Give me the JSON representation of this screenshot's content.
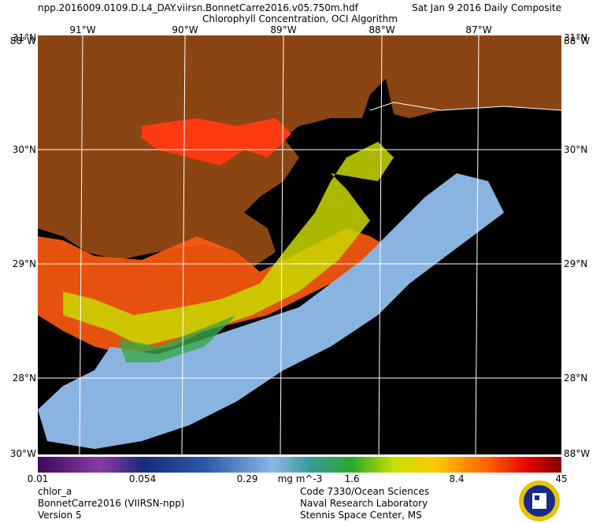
{
  "header": {
    "filename": "npp.2016009.0109.D.L4_DAY.viirsn.BonnetCarre2016.v05.750m.hdf",
    "date": "Sat Jan  9 2016 Daily Composite",
    "subtitle": "Chlorophyll Concentration, OCI Algorithm"
  },
  "map": {
    "lon_labels_top": [
      "91°W",
      "90°W",
      "89°W",
      "88°W",
      "87°W"
    ],
    "lat_labels_left": [
      "31°N",
      "30°N",
      "29°N",
      "28°N"
    ],
    "lat_labels_right": [
      "31°N",
      "30°N",
      "29°N",
      "28°N"
    ],
    "corner_top_left": "88°W",
    "corner_top_right": "88°W",
    "corner_bottom_left": "30°W",
    "corner_bottom_right": "88°W"
  },
  "colorbar": {
    "labels": [
      "0.01",
      "0.054",
      "0.29",
      "1.6",
      "8.4",
      "45"
    ],
    "units": "mg m^-3"
  },
  "footer": {
    "left": [
      "chlor_a",
      "BonnetCarre2016 (VIIRSN-npp)",
      "Version 5"
    ],
    "right": [
      "Code 7330/Ocean Sciences",
      "Naval Research Laboratory",
      "Stennis Space Center, MS"
    ]
  }
}
